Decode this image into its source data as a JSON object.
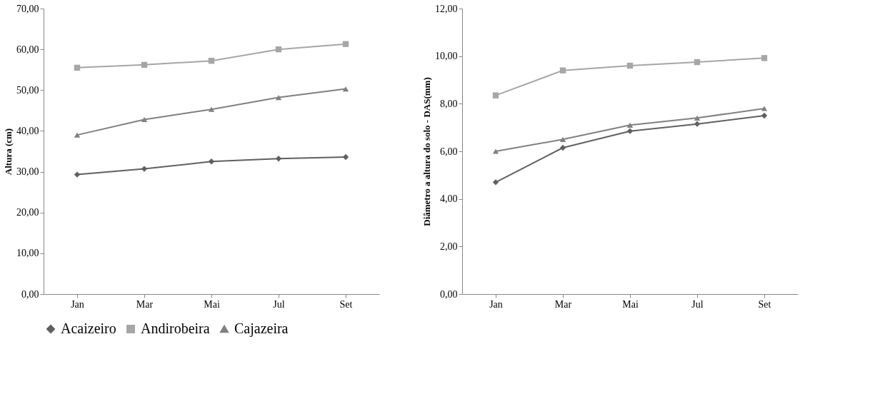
{
  "chart_data": [
    {
      "type": "line",
      "ylabel": "Altura (cm)",
      "categories": [
        "Jan",
        "Mar",
        "Mai",
        "Jul",
        "Set"
      ],
      "ylim": [
        0,
        70
      ],
      "yticks": [
        {
          "value": 0,
          "label": "0,00"
        },
        {
          "value": 10,
          "label": "10,00"
        },
        {
          "value": 20,
          "label": "20,00"
        },
        {
          "value": 30,
          "label": "30,00"
        },
        {
          "value": 40,
          "label": "40,00"
        },
        {
          "value": 50,
          "label": "50,00"
        },
        {
          "value": 60,
          "label": "60,00"
        },
        {
          "value": 70,
          "label": "70,00"
        }
      ],
      "grid": false,
      "legend": "bottom",
      "line_style": "solid",
      "series": [
        {
          "name": "Acaizeiro",
          "color": "#606060",
          "marker": "diamond",
          "values": [
            29.3,
            30.7,
            32.5,
            33.2,
            33.6
          ]
        },
        {
          "name": "Andirobeira",
          "color": "#a6a6a6",
          "marker": "square",
          "values": [
            55.5,
            56.2,
            57.2,
            60.0,
            61.3
          ]
        },
        {
          "name": "Cajazeira",
          "color": "#808080",
          "marker": "triangle",
          "values": [
            39.0,
            42.8,
            45.3,
            48.2,
            50.3
          ]
        }
      ]
    },
    {
      "type": "line",
      "ylabel": "Diâmetro a altura do solo - DAS(mm)",
      "categories": [
        "Jan",
        "Mar",
        "Mai",
        "Jul",
        "Set"
      ],
      "ylim": [
        0,
        12
      ],
      "yticks": [
        {
          "value": 0,
          "label": "0,00"
        },
        {
          "value": 2,
          "label": "2,00"
        },
        {
          "value": 4,
          "label": "4,00"
        },
        {
          "value": 6,
          "label": "6,00"
        },
        {
          "value": 8,
          "label": "8,00"
        },
        {
          "value": 10,
          "label": "10,00"
        },
        {
          "value": 12,
          "label": "12,00"
        }
      ],
      "grid": false,
      "legend": "bottom",
      "line_style": "solid",
      "series": [
        {
          "name": "Acaizeiro",
          "color": "#606060",
          "marker": "diamond",
          "values": [
            4.7,
            6.15,
            6.85,
            7.15,
            7.5
          ]
        },
        {
          "name": "Andirobeira",
          "color": "#a6a6a6",
          "marker": "square",
          "values": [
            8.35,
            9.4,
            9.6,
            9.75,
            9.92
          ]
        },
        {
          "name": "Cajazeira",
          "color": "#808080",
          "marker": "triangle",
          "values": [
            6.0,
            6.5,
            7.1,
            7.4,
            7.8
          ]
        }
      ]
    }
  ]
}
